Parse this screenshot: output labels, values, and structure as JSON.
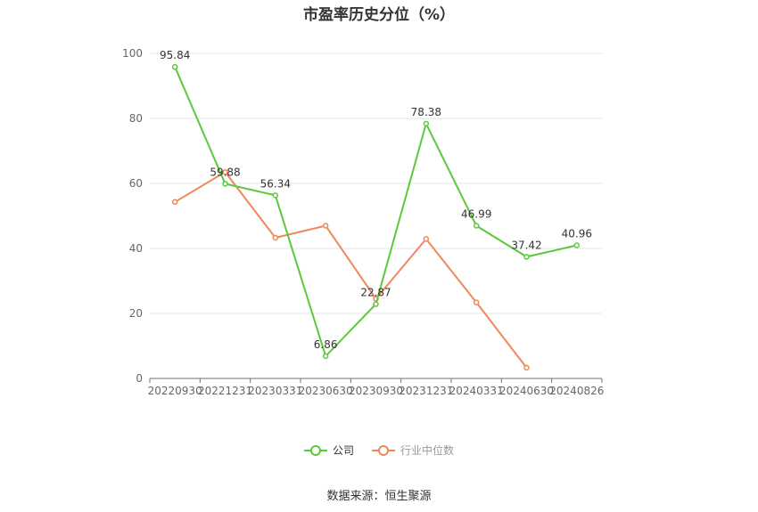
{
  "chart_data": {
    "type": "line",
    "title": "市盈率历史分位（%）",
    "categories": [
      "20220930",
      "20221231",
      "20230331",
      "20230630",
      "20230930",
      "20231231",
      "20240331",
      "20240630",
      "20240826"
    ],
    "series": [
      {
        "name": "公司",
        "color": "#5cc93a",
        "values": [
          95.84,
          59.88,
          56.34,
          6.86,
          22.87,
          78.38,
          46.99,
          37.42,
          40.96
        ],
        "labels": [
          "95.84",
          "59.88",
          "56.34",
          "6.86",
          "22.87",
          "78.38",
          "46.99",
          "37.42",
          "40.96"
        ]
      },
      {
        "name": "行业中位数",
        "color": "#f0875a",
        "values": [
          54.3,
          63.5,
          43.3,
          47.0,
          24.5,
          42.9,
          23.4,
          3.3,
          null
        ]
      }
    ],
    "ylim": [
      0,
      100
    ],
    "yticks": [
      0,
      20,
      40,
      60,
      80,
      100
    ],
    "grid": true,
    "legend_position": "bottom"
  },
  "source_text": "数据来源：恒生聚源"
}
